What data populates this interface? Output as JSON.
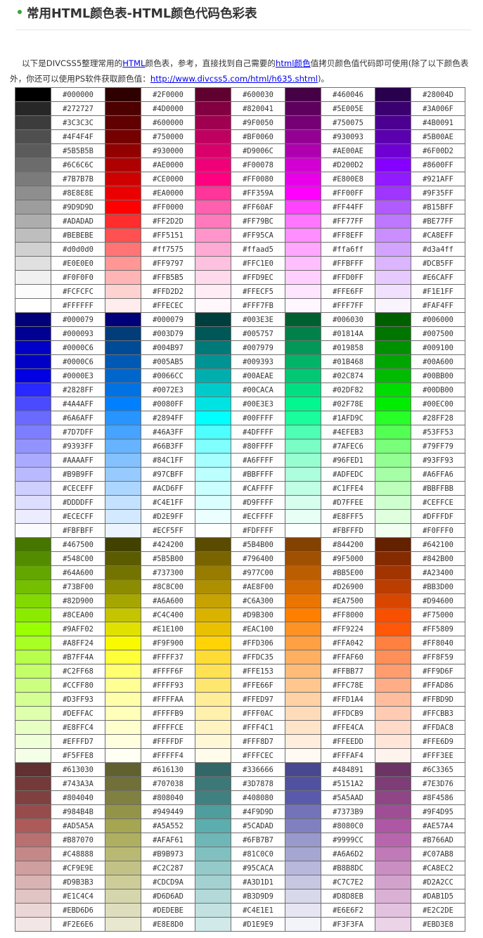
{
  "heading": {
    "title": "常用HTML颜色表-HTML颜色代码色彩表"
  },
  "intro": {
    "text_1": "以下是DIVCSS5整理常用的",
    "link_html": "HTML",
    "text_2": "颜色表，参考，直接找到自己需要的",
    "link_html_color": "html颜色",
    "text_3": "值拷贝颜色值代码即可使用(除了以下颜色表外，你还可以使用PS软件获取颜色值：",
    "link_url": "http://www.divcss5.com/html/h635.shtml",
    "text_4": ")。"
  },
  "color_table": {
    "rows": [
      [
        "#000000",
        "#2F0000",
        "#600030",
        "#460046",
        "#28004D"
      ],
      [
        "#272727",
        "#4D0000",
        "#820041",
        "#5E005E",
        "#3A006F"
      ],
      [
        "#3C3C3C",
        "#600000",
        "#9F0050",
        "#750075",
        "#4B0091"
      ],
      [
        "#4F4F4F",
        "#750000",
        "#BF0060",
        "#930093",
        "#5B00AE"
      ],
      [
        "#5B5B5B",
        "#930000",
        "#D9006C",
        "#AE00AE",
        "#6F00D2"
      ],
      [
        "#6C6C6C",
        "#AE0000",
        "#F00078",
        "#D200D2",
        "#8600FF"
      ],
      [
        "#7B7B7B",
        "#CE0000",
        "#FF0080",
        "#E800E8",
        "#921AFF"
      ],
      [
        "#8E8E8E",
        "#EA0000",
        "#FF359A",
        "#FF00FF",
        "#9F35FF"
      ],
      [
        "#9D9D9D",
        "#FF0000",
        "#FF60AF",
        "#FF44FF",
        "#B15BFF"
      ],
      [
        "#ADADAD",
        "#FF2D2D",
        "#FF79BC",
        "#FF77FF",
        "#BE77FF"
      ],
      [
        "#BEBEBE",
        "#FF5151",
        "#FF95CA",
        "#FF8EFF",
        "#CA8EFF"
      ],
      [
        "#d0d0d0",
        "#ff7575",
        "#ffaad5",
        "#ffa6ff",
        "#d3a4ff"
      ],
      [
        "#E0E0E0",
        "#FF9797",
        "#FFC1E0",
        "#FFBFFF",
        "#DCB5FF"
      ],
      [
        "#F0F0F0",
        "#FFB5B5",
        "#FFD9EC",
        "#FFD0FF",
        "#E6CAFF"
      ],
      [
        "#FCFCFC",
        "#FFD2D2",
        "#FFECF5",
        "#FFE6FF",
        "#F1E1FF"
      ],
      [
        "#FFFFFF",
        "#FFECEC",
        "#FFF7FB",
        "#FFF7FF",
        "#FAF4FF"
      ],
      [
        "#000079",
        "#000079",
        "#003E3E",
        "#006030",
        "#006000"
      ],
      [
        "#000093",
        "#003D79",
        "#005757",
        "#01814A",
        "#007500"
      ],
      [
        "#0000C6",
        "#004B97",
        "#007979",
        "#019858",
        "#009100"
      ],
      [
        "#0000C6",
        "#005AB5",
        "#009393",
        "#01B468",
        "#00A600"
      ],
      [
        "#0000E3",
        "#0066CC",
        "#00AEAE",
        "#02C874",
        "#00BB00"
      ],
      [
        "#2828FF",
        "#0072E3",
        "#00CACA",
        "#02DF82",
        "#00DB00"
      ],
      [
        "#4A4AFF",
        "#0080FF",
        "#00E3E3",
        "#02F78E",
        "#00EC00"
      ],
      [
        "#6A6AFF",
        "#2894FF",
        "#00FFFF",
        "#1AFD9C",
        "#28FF28"
      ],
      [
        "#7D7DFF",
        "#46A3FF",
        "#4DFFFF",
        "#4EFEB3",
        "#53FF53"
      ],
      [
        "#9393FF",
        "#66B3FF",
        "#80FFFF",
        "#7AFEC6",
        "#79FF79"
      ],
      [
        "#AAAAFF",
        "#84C1FF",
        "#A6FFFF",
        "#96FED1",
        "#93FF93"
      ],
      [
        "#B9B9FF",
        "#97CBFF",
        "#BBFFFF",
        "#ADFEDC",
        "#A6FFA6"
      ],
      [
        "#CECEFF",
        "#ACD6FF",
        "#CAFFFF",
        "#C1FFE4",
        "#BBFFBB"
      ],
      [
        "#DDDDFF",
        "#C4E1FF",
        "#D9FFFF",
        "#D7FFEE",
        "#CEFFCE"
      ],
      [
        "#ECECFF",
        "#D2E9FF",
        "#ECFFFF",
        "#E8FFF5",
        "#DFFFDF"
      ],
      [
        "#FBFBFF",
        "#ECF5FF",
        "#FDFFFF",
        "#FBFFFD",
        "#F0FFF0"
      ],
      [
        "#467500",
        "#424200",
        "#5B4B00",
        "#844200",
        "#642100"
      ],
      [
        "#548C00",
        "#5B5B00",
        "#796400",
        "#9F5000",
        "#842B00"
      ],
      [
        "#64A600",
        "#737300",
        "#977C00",
        "#BB5E00",
        "#A23400"
      ],
      [
        "#73BF00",
        "#8C8C00",
        "#AE8F00",
        "#D26900",
        "#BB3D00"
      ],
      [
        "#82D900",
        "#A6A600",
        "#C6A300",
        "#EA7500",
        "#D94600"
      ],
      [
        "#8CEA00",
        "#C4C400",
        "#D9B300",
        "#FF8000",
        "#F75000"
      ],
      [
        "#9AFF02",
        "#E1E100",
        "#EAC100",
        "#FF9224",
        "#FF5809"
      ],
      [
        "#A8FF24",
        "#F9F900",
        "#FFD306",
        "#FFA042",
        "#FF8040"
      ],
      [
        "#B7FF4A",
        "#FFFF37",
        "#FFDC35",
        "#FFAF60",
        "#FF8F59"
      ],
      [
        "#C2FF68",
        "#FFFF6F",
        "#FFE153",
        "#FFBB77",
        "#FF9D6F"
      ],
      [
        "#CCFF80",
        "#FFFF93",
        "#FFE66F",
        "#FFC78E",
        "#FFAD86"
      ],
      [
        "#D3FF93",
        "#FFFFAA",
        "#FFED97",
        "#FFD1A4",
        "#FFBD9D"
      ],
      [
        "#DEFFAC",
        "#FFFFB9",
        "#FFF0AC",
        "#FFDCB9",
        "#FFCBB3"
      ],
      [
        "#E8FFC4",
        "#FFFFCE",
        "#FFF4C1",
        "#FFE4CA",
        "#FFDAC8"
      ],
      [
        "#EFFFD7",
        "#FFFFDF",
        "#FFF8D7",
        "#FFEEDD",
        "#FFE6D9"
      ],
      [
        "#F5FFE8",
        "#FFFFF4",
        "#FFFCEC",
        "#FFFAF4",
        "#FFF3EE"
      ],
      [
        "#613030",
        "#616130",
        "#336666",
        "#484891",
        "#6C3365"
      ],
      [
        "#743A3A",
        "#707038",
        "#3D7878",
        "#5151A2",
        "#7E3D76"
      ],
      [
        "#804040",
        "#808040",
        "#408080",
        "#5A5AAD",
        "#8F4586"
      ],
      [
        "#984B4B",
        "#949449",
        "#4F9D9D",
        "#7373B9",
        "#9F4D95"
      ],
      [
        "#AD5A5A",
        "#A5A552",
        "#5CADAD",
        "#8080C0",
        "#AE57A4"
      ],
      [
        "#B87070",
        "#AFAF61",
        "#6FB7B7",
        "#9999CC",
        "#B766AD"
      ],
      [
        "#C48888",
        "#B9B973",
        "#81C0C0",
        "#A6A6D2",
        "#C07AB8"
      ],
      [
        "#CF9E9E",
        "#C2C287",
        "#95CACA",
        "#B8B8DC",
        "#CA8EC2"
      ],
      [
        "#D9B3B3",
        "#CDCD9A",
        "#A3D1D1",
        "#C7C7E2",
        "#D2A2CC"
      ],
      [
        "#E1C4C4",
        "#D6D6AD",
        "#B3D9D9",
        "#D8D8EB",
        "#DAB1D5"
      ],
      [
        "#EBD6D6",
        "#DEDEBE",
        "#C4E1E1",
        "#E6E6F2",
        "#E2C2DE"
      ],
      [
        "#F2E6E6",
        "#E8E8D0",
        "#D1E9E9",
        "#F3F3FA",
        "#EBD3E8"
      ]
    ]
  }
}
